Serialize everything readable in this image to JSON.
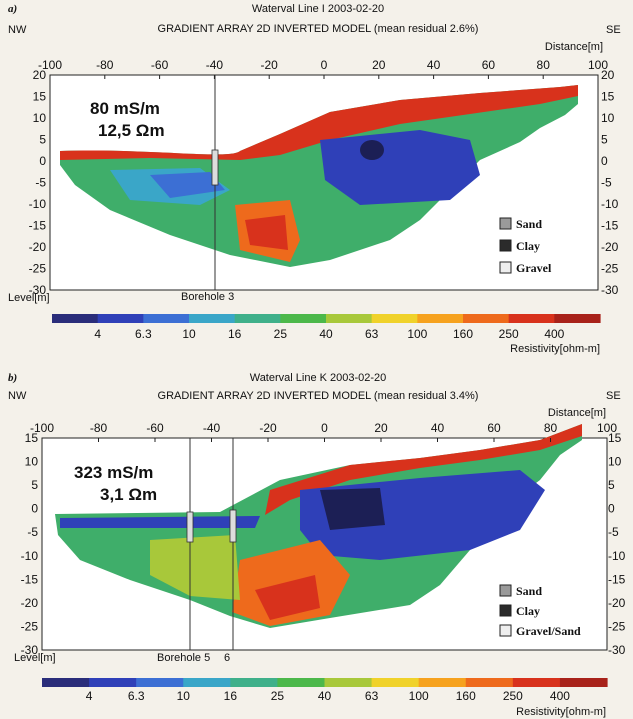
{
  "chart_data": [
    {
      "type": "heatmap",
      "panel_label": "a)",
      "title": "Waterval Line I 2003-02-20",
      "subtitle": "GRADIENT ARRAY 2D INVERTED MODEL (mean residual 2.6%)",
      "left_label": "NW",
      "right_label": "SE",
      "xlabel": "Distance[m]",
      "ylabel": "Level[m]",
      "xlim": [
        -100,
        100
      ],
      "ylim": [
        -30,
        20
      ],
      "x_ticks": [
        "-100",
        "-80",
        "-60",
        "-40",
        "-20",
        "0",
        "20",
        "40",
        "60",
        "80",
        "100"
      ],
      "y_ticks": [
        "20",
        "15",
        "10",
        "5",
        "0",
        "-5",
        "-10",
        "-15",
        "-20",
        "-25",
        "-30"
      ],
      "annotation_conductivity": "80 mS/m",
      "annotation_resistivity": "12,5 Ωm",
      "boreholes": [
        {
          "x": -40,
          "label": "Borehole 3"
        }
      ],
      "legend": [
        "Sand",
        "Clay",
        "Gravel"
      ]
    },
    {
      "type": "heatmap",
      "panel_label": "b)",
      "title": "Waterval Line K 2003-02-20",
      "subtitle": "GRADIENT ARRAY 2D INVERTED MODEL (mean residual 3.4%)",
      "left_label": "NW",
      "right_label": "SE",
      "xlabel": "Distance[m]",
      "ylabel": "Level[m]",
      "xlim": [
        -100,
        100
      ],
      "ylim": [
        -30,
        15
      ],
      "x_ticks": [
        "-100",
        "-80",
        "-60",
        "-40",
        "-20",
        "0",
        "20",
        "40",
        "60",
        "80",
        "100"
      ],
      "y_ticks": [
        "15",
        "10",
        "5",
        "0",
        "-5",
        "-10",
        "-15",
        "-20",
        "-25",
        "-30"
      ],
      "annotation_conductivity": "323 mS/m",
      "annotation_resistivity": "3,1 Ωm",
      "boreholes": [
        {
          "x": -48,
          "label": "Borehole 5"
        },
        {
          "x": -32,
          "label": "6"
        }
      ],
      "legend": [
        "Sand",
        "Clay",
        "Gravel/Sand"
      ]
    }
  ],
  "colorbar": {
    "ticks": [
      "4",
      "6.3",
      "10",
      "16",
      "25",
      "40",
      "63",
      "100",
      "160",
      "250",
      "400"
    ],
    "label": "Resistivity[ohm-m]",
    "colors": [
      "#2a2d7a",
      "#2f40b8",
      "#3c6fd4",
      "#3aa6c8",
      "#3fb08a",
      "#4cb84a",
      "#a8c83a",
      "#f0d22a",
      "#f6a21e",
      "#ee6a1c",
      "#d8321c",
      "#a8221a"
    ]
  }
}
